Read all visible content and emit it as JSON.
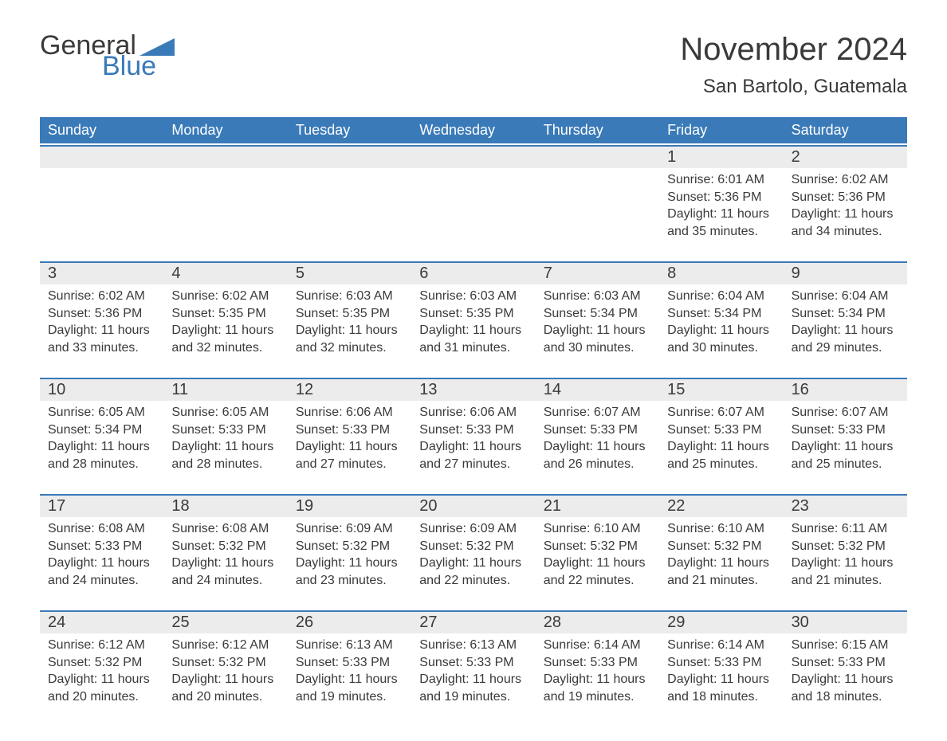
{
  "logo": {
    "text1": "General",
    "text2": "Blue"
  },
  "title": "November 2024",
  "subtitle": "San Bartolo, Guatemala",
  "colors": {
    "header_bg": "#3a7ab8",
    "header_text": "#ffffff",
    "daynum_bg": "#ececec",
    "border_accent": "#3a7ab8",
    "body_text": "#3a3a3a",
    "page_bg": "#ffffff"
  },
  "weekdays": [
    "Sunday",
    "Monday",
    "Tuesday",
    "Wednesday",
    "Thursday",
    "Friday",
    "Saturday"
  ],
  "weeks": [
    {
      "days": [
        {
          "n": "",
          "sr": "",
          "ss": "",
          "dl1": "",
          "dl2": ""
        },
        {
          "n": "",
          "sr": "",
          "ss": "",
          "dl1": "",
          "dl2": ""
        },
        {
          "n": "",
          "sr": "",
          "ss": "",
          "dl1": "",
          "dl2": ""
        },
        {
          "n": "",
          "sr": "",
          "ss": "",
          "dl1": "",
          "dl2": ""
        },
        {
          "n": "",
          "sr": "",
          "ss": "",
          "dl1": "",
          "dl2": ""
        },
        {
          "n": "1",
          "sr": "Sunrise: 6:01 AM",
          "ss": "Sunset: 5:36 PM",
          "dl1": "Daylight: 11 hours",
          "dl2": "and 35 minutes."
        },
        {
          "n": "2",
          "sr": "Sunrise: 6:02 AM",
          "ss": "Sunset: 5:36 PM",
          "dl1": "Daylight: 11 hours",
          "dl2": "and 34 minutes."
        }
      ]
    },
    {
      "days": [
        {
          "n": "3",
          "sr": "Sunrise: 6:02 AM",
          "ss": "Sunset: 5:36 PM",
          "dl1": "Daylight: 11 hours",
          "dl2": "and 33 minutes."
        },
        {
          "n": "4",
          "sr": "Sunrise: 6:02 AM",
          "ss": "Sunset: 5:35 PM",
          "dl1": "Daylight: 11 hours",
          "dl2": "and 32 minutes."
        },
        {
          "n": "5",
          "sr": "Sunrise: 6:03 AM",
          "ss": "Sunset: 5:35 PM",
          "dl1": "Daylight: 11 hours",
          "dl2": "and 32 minutes."
        },
        {
          "n": "6",
          "sr": "Sunrise: 6:03 AM",
          "ss": "Sunset: 5:35 PM",
          "dl1": "Daylight: 11 hours",
          "dl2": "and 31 minutes."
        },
        {
          "n": "7",
          "sr": "Sunrise: 6:03 AM",
          "ss": "Sunset: 5:34 PM",
          "dl1": "Daylight: 11 hours",
          "dl2": "and 30 minutes."
        },
        {
          "n": "8",
          "sr": "Sunrise: 6:04 AM",
          "ss": "Sunset: 5:34 PM",
          "dl1": "Daylight: 11 hours",
          "dl2": "and 30 minutes."
        },
        {
          "n": "9",
          "sr": "Sunrise: 6:04 AM",
          "ss": "Sunset: 5:34 PM",
          "dl1": "Daylight: 11 hours",
          "dl2": "and 29 minutes."
        }
      ]
    },
    {
      "days": [
        {
          "n": "10",
          "sr": "Sunrise: 6:05 AM",
          "ss": "Sunset: 5:34 PM",
          "dl1": "Daylight: 11 hours",
          "dl2": "and 28 minutes."
        },
        {
          "n": "11",
          "sr": "Sunrise: 6:05 AM",
          "ss": "Sunset: 5:33 PM",
          "dl1": "Daylight: 11 hours",
          "dl2": "and 28 minutes."
        },
        {
          "n": "12",
          "sr": "Sunrise: 6:06 AM",
          "ss": "Sunset: 5:33 PM",
          "dl1": "Daylight: 11 hours",
          "dl2": "and 27 minutes."
        },
        {
          "n": "13",
          "sr": "Sunrise: 6:06 AM",
          "ss": "Sunset: 5:33 PM",
          "dl1": "Daylight: 11 hours",
          "dl2": "and 27 minutes."
        },
        {
          "n": "14",
          "sr": "Sunrise: 6:07 AM",
          "ss": "Sunset: 5:33 PM",
          "dl1": "Daylight: 11 hours",
          "dl2": "and 26 minutes."
        },
        {
          "n": "15",
          "sr": "Sunrise: 6:07 AM",
          "ss": "Sunset: 5:33 PM",
          "dl1": "Daylight: 11 hours",
          "dl2": "and 25 minutes."
        },
        {
          "n": "16",
          "sr": "Sunrise: 6:07 AM",
          "ss": "Sunset: 5:33 PM",
          "dl1": "Daylight: 11 hours",
          "dl2": "and 25 minutes."
        }
      ]
    },
    {
      "days": [
        {
          "n": "17",
          "sr": "Sunrise: 6:08 AM",
          "ss": "Sunset: 5:33 PM",
          "dl1": "Daylight: 11 hours",
          "dl2": "and 24 minutes."
        },
        {
          "n": "18",
          "sr": "Sunrise: 6:08 AM",
          "ss": "Sunset: 5:32 PM",
          "dl1": "Daylight: 11 hours",
          "dl2": "and 24 minutes."
        },
        {
          "n": "19",
          "sr": "Sunrise: 6:09 AM",
          "ss": "Sunset: 5:32 PM",
          "dl1": "Daylight: 11 hours",
          "dl2": "and 23 minutes."
        },
        {
          "n": "20",
          "sr": "Sunrise: 6:09 AM",
          "ss": "Sunset: 5:32 PM",
          "dl1": "Daylight: 11 hours",
          "dl2": "and 22 minutes."
        },
        {
          "n": "21",
          "sr": "Sunrise: 6:10 AM",
          "ss": "Sunset: 5:32 PM",
          "dl1": "Daylight: 11 hours",
          "dl2": "and 22 minutes."
        },
        {
          "n": "22",
          "sr": "Sunrise: 6:10 AM",
          "ss": "Sunset: 5:32 PM",
          "dl1": "Daylight: 11 hours",
          "dl2": "and 21 minutes."
        },
        {
          "n": "23",
          "sr": "Sunrise: 6:11 AM",
          "ss": "Sunset: 5:32 PM",
          "dl1": "Daylight: 11 hours",
          "dl2": "and 21 minutes."
        }
      ]
    },
    {
      "days": [
        {
          "n": "24",
          "sr": "Sunrise: 6:12 AM",
          "ss": "Sunset: 5:32 PM",
          "dl1": "Daylight: 11 hours",
          "dl2": "and 20 minutes."
        },
        {
          "n": "25",
          "sr": "Sunrise: 6:12 AM",
          "ss": "Sunset: 5:32 PM",
          "dl1": "Daylight: 11 hours",
          "dl2": "and 20 minutes."
        },
        {
          "n": "26",
          "sr": "Sunrise: 6:13 AM",
          "ss": "Sunset: 5:33 PM",
          "dl1": "Daylight: 11 hours",
          "dl2": "and 19 minutes."
        },
        {
          "n": "27",
          "sr": "Sunrise: 6:13 AM",
          "ss": "Sunset: 5:33 PM",
          "dl1": "Daylight: 11 hours",
          "dl2": "and 19 minutes."
        },
        {
          "n": "28",
          "sr": "Sunrise: 6:14 AM",
          "ss": "Sunset: 5:33 PM",
          "dl1": "Daylight: 11 hours",
          "dl2": "and 19 minutes."
        },
        {
          "n": "29",
          "sr": "Sunrise: 6:14 AM",
          "ss": "Sunset: 5:33 PM",
          "dl1": "Daylight: 11 hours",
          "dl2": "and 18 minutes."
        },
        {
          "n": "30",
          "sr": "Sunrise: 6:15 AM",
          "ss": "Sunset: 5:33 PM",
          "dl1": "Daylight: 11 hours",
          "dl2": "and 18 minutes."
        }
      ]
    }
  ]
}
